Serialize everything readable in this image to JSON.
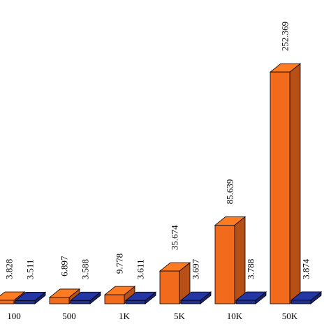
{
  "chart_data": {
    "type": "bar3d",
    "categories": [
      "100",
      "500",
      "1K",
      "5K",
      "10K",
      "50K"
    ],
    "series": [
      {
        "color": "#f26b1d",
        "values": [
          3.828,
          6.897,
          9.778,
          35.674,
          85.639,
          252.369
        ]
      },
      {
        "color": "#1f2e8f",
        "values": [
          3.511,
          3.588,
          3.611,
          3.697,
          3.788,
          3.874
        ]
      }
    ]
  }
}
